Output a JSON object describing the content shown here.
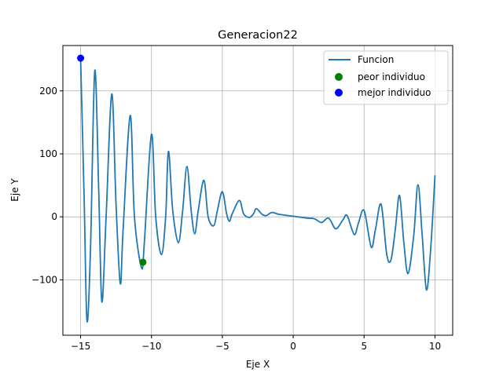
{
  "chart_data": {
    "type": "line",
    "title": "Generacion22",
    "xlabel": "Eje X",
    "ylabel": "Eje Y",
    "xlim": [
      -16.25,
      11.25
    ],
    "ylim": [
      -188,
      272
    ],
    "x_ticks": [
      -15,
      -10,
      -5,
      0,
      5,
      10
    ],
    "y_ticks": [
      -100,
      0,
      100,
      200
    ],
    "grid": true,
    "legend_position": "top-right",
    "series": [
      {
        "name": "Funcion",
        "color": "#1f77b4",
        "x_range": [
          -15,
          10
        ],
        "points": [
          [
            -15.0,
            252
          ],
          [
            -14.75,
            30
          ],
          [
            -14.55,
            -165
          ],
          [
            -14.3,
            -50
          ],
          [
            -14.0,
            232
          ],
          [
            -13.72,
            40
          ],
          [
            -13.5,
            -135
          ],
          [
            -13.2,
            0
          ],
          [
            -12.8,
            195
          ],
          [
            -12.5,
            20
          ],
          [
            -12.2,
            -106
          ],
          [
            -12.0,
            -20
          ],
          [
            -11.5,
            161
          ],
          [
            -11.2,
            0
          ],
          [
            -10.7,
            -81
          ],
          [
            -10.5,
            -40
          ],
          [
            -10.0,
            131
          ],
          [
            -9.7,
            0
          ],
          [
            -9.3,
            -60
          ],
          [
            -9.0,
            0
          ],
          [
            -8.8,
            104
          ],
          [
            -8.5,
            10
          ],
          [
            -8.1,
            -41
          ],
          [
            -7.8,
            10
          ],
          [
            -7.5,
            80
          ],
          [
            -7.2,
            10
          ],
          [
            -6.95,
            -27
          ],
          [
            -6.7,
            10
          ],
          [
            -6.3,
            58
          ],
          [
            -6.0,
            0
          ],
          [
            -5.6,
            -14
          ],
          [
            -5.35,
            10
          ],
          [
            -5.0,
            40
          ],
          [
            -4.7,
            5
          ],
          [
            -4.5,
            -7
          ],
          [
            -4.3,
            5
          ],
          [
            -3.8,
            26
          ],
          [
            -3.5,
            5
          ],
          [
            -3.1,
            -1
          ],
          [
            -2.8,
            5
          ],
          [
            -2.6,
            13
          ],
          [
            -2.2,
            4
          ],
          [
            -1.9,
            2
          ],
          [
            -1.5,
            7
          ],
          [
            -1.0,
            4
          ],
          [
            0.0,
            1
          ],
          [
            1.0,
            -2
          ],
          [
            1.5,
            -3
          ],
          [
            2.0,
            -9
          ],
          [
            2.5,
            -2
          ],
          [
            3.0,
            -19
          ],
          [
            3.5,
            -5
          ],
          [
            3.8,
            2
          ],
          [
            4.3,
            -28
          ],
          [
            4.6,
            -10
          ],
          [
            5.0,
            10
          ],
          [
            5.5,
            -48
          ],
          [
            5.8,
            -20
          ],
          [
            6.2,
            20
          ],
          [
            6.6,
            -60
          ],
          [
            6.9,
            -68
          ],
          [
            7.2,
            -20
          ],
          [
            7.5,
            34
          ],
          [
            7.8,
            -40
          ],
          [
            8.1,
            -90
          ],
          [
            8.5,
            -30
          ],
          [
            8.8,
            51
          ],
          [
            9.1,
            -30
          ],
          [
            9.4,
            -116
          ],
          [
            9.7,
            -50
          ],
          [
            10.0,
            66
          ]
        ]
      },
      {
        "name": "peor individuo",
        "color": "#008000",
        "marker": "circle",
        "x": [
          -10.6
        ],
        "y": [
          -72
        ]
      },
      {
        "name": "mejor individuo",
        "color": "#0000ff",
        "marker": "circle",
        "x": [
          -15.0
        ],
        "y": [
          252
        ]
      }
    ]
  }
}
